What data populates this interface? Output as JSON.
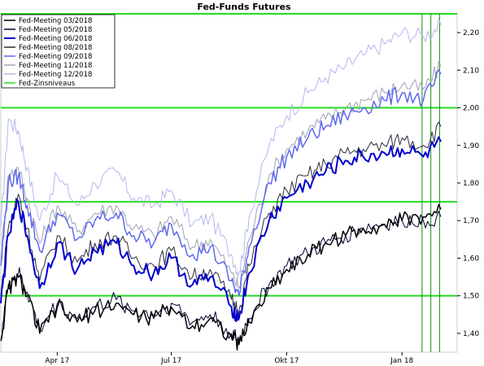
{
  "chart_data": {
    "type": "line",
    "title": "Fed-Funds Futures",
    "xlabel": "",
    "ylabel": "",
    "x_tick_labels": [
      "Apr 17",
      "Jul 17",
      "Okt 17",
      "Jan 18"
    ],
    "y_tick_labels": [
      "1,40",
      "1,50",
      "1,60",
      "1,70",
      "1,80",
      "1,90",
      "2,00",
      "2,10",
      "2,20"
    ],
    "ylim": [
      1.35,
      2.25
    ],
    "xlim": [
      "2017-03-01",
      "2018-02-28"
    ],
    "grid": false,
    "legend_position": "top-left",
    "reference_lines": {
      "name": "Fed-Zinsniveaus",
      "color": "#22dd22",
      "horizontal_levels": [
        1.5,
        1.75,
        2.0,
        2.25
      ],
      "vertical_dates": [
        "2018-01-31",
        "2018-02-07",
        "2018-02-14"
      ]
    },
    "series": [
      {
        "name": "Fed-Meeting 03/2018",
        "color": "#000000",
        "x": [
          "2017-03-01",
          "2017-03-07",
          "2017-03-15",
          "2017-03-22",
          "2017-04-01",
          "2017-04-15",
          "2017-05-01",
          "2017-05-15",
          "2017-06-01",
          "2017-06-15",
          "2017-07-01",
          "2017-07-15",
          "2017-08-01",
          "2017-08-15",
          "2017-09-01",
          "2017-09-07",
          "2017-09-15",
          "2017-10-01",
          "2017-10-15",
          "2017-11-01",
          "2017-11-15",
          "2017-12-01",
          "2017-12-15",
          "2018-01-01",
          "2018-01-15",
          "2018-02-01",
          "2018-02-15"
        ],
        "values": [
          1.38,
          1.52,
          1.55,
          1.5,
          1.4,
          1.47,
          1.43,
          1.46,
          1.48,
          1.45,
          1.44,
          1.47,
          1.42,
          1.44,
          1.39,
          1.37,
          1.43,
          1.52,
          1.57,
          1.61,
          1.64,
          1.66,
          1.68,
          1.69,
          1.7,
          1.71,
          1.73
        ]
      },
      {
        "name": "Fed-Meeting 05/2018",
        "color": "#000033",
        "x": [
          "2017-03-01",
          "2017-03-07",
          "2017-03-15",
          "2017-03-22",
          "2017-04-01",
          "2017-04-15",
          "2017-05-01",
          "2017-05-15",
          "2017-06-01",
          "2017-06-15",
          "2017-07-01",
          "2017-07-15",
          "2017-08-01",
          "2017-08-15",
          "2017-09-01",
          "2017-09-07",
          "2017-09-15",
          "2017-10-01",
          "2017-10-15",
          "2017-11-01",
          "2017-11-15",
          "2017-12-01",
          "2017-12-15",
          "2018-01-01",
          "2018-01-15",
          "2018-02-01",
          "2018-02-15"
        ],
        "values": [
          1.39,
          1.53,
          1.56,
          1.51,
          1.41,
          1.48,
          1.44,
          1.47,
          1.49,
          1.46,
          1.45,
          1.48,
          1.43,
          1.45,
          1.4,
          1.38,
          1.44,
          1.53,
          1.58,
          1.61,
          1.64,
          1.66,
          1.68,
          1.69,
          1.7,
          1.7,
          1.71
        ]
      },
      {
        "name": "Fed-Meeting 06/2018",
        "color": "#0000cc",
        "x": [
          "2017-03-01",
          "2017-03-07",
          "2017-03-15",
          "2017-03-22",
          "2017-04-01",
          "2017-04-15",
          "2017-05-01",
          "2017-05-15",
          "2017-06-01",
          "2017-06-15",
          "2017-07-01",
          "2017-07-15",
          "2017-08-01",
          "2017-08-15",
          "2017-09-01",
          "2017-09-07",
          "2017-09-15",
          "2017-10-01",
          "2017-10-15",
          "2017-11-01",
          "2017-11-15",
          "2017-12-01",
          "2017-12-15",
          "2018-01-01",
          "2018-01-15",
          "2018-02-01",
          "2018-02-15"
        ],
        "values": [
          1.48,
          1.66,
          1.75,
          1.66,
          1.52,
          1.64,
          1.57,
          1.62,
          1.64,
          1.58,
          1.56,
          1.6,
          1.53,
          1.55,
          1.47,
          1.44,
          1.56,
          1.7,
          1.76,
          1.8,
          1.83,
          1.86,
          1.87,
          1.88,
          1.89,
          1.87,
          1.91
        ]
      },
      {
        "name": "Fed-Meeting 08/2018",
        "color": "#2a2a3a",
        "x": [
          "2017-03-01",
          "2017-03-07",
          "2017-03-15",
          "2017-03-22",
          "2017-04-01",
          "2017-04-15",
          "2017-05-01",
          "2017-05-15",
          "2017-06-01",
          "2017-06-15",
          "2017-07-01",
          "2017-07-15",
          "2017-08-01",
          "2017-08-15",
          "2017-09-01",
          "2017-09-07",
          "2017-09-15",
          "2017-10-01",
          "2017-10-15",
          "2017-11-01",
          "2017-11-15",
          "2017-12-01",
          "2017-12-15",
          "2018-01-01",
          "2018-01-15",
          "2018-02-01",
          "2018-02-15"
        ],
        "values": [
          1.5,
          1.68,
          1.77,
          1.68,
          1.54,
          1.66,
          1.59,
          1.64,
          1.66,
          1.6,
          1.58,
          1.62,
          1.55,
          1.57,
          1.49,
          1.46,
          1.58,
          1.72,
          1.78,
          1.82,
          1.85,
          1.88,
          1.89,
          1.9,
          1.92,
          1.9,
          1.95
        ]
      },
      {
        "name": "Fed-Meeting 09/2018",
        "color": "#5f6aee",
        "x": [
          "2017-03-01",
          "2017-03-07",
          "2017-03-15",
          "2017-03-22",
          "2017-04-01",
          "2017-04-15",
          "2017-05-01",
          "2017-05-15",
          "2017-06-01",
          "2017-06-15",
          "2017-07-01",
          "2017-07-15",
          "2017-08-01",
          "2017-08-15",
          "2017-09-01",
          "2017-09-07",
          "2017-09-15",
          "2017-10-01",
          "2017-10-15",
          "2017-11-01",
          "2017-11-15",
          "2017-12-01",
          "2017-12-15",
          "2018-01-01",
          "2018-01-15",
          "2018-02-01",
          "2018-02-15"
        ],
        "values": [
          1.58,
          1.8,
          1.82,
          1.74,
          1.62,
          1.72,
          1.65,
          1.7,
          1.72,
          1.66,
          1.64,
          1.69,
          1.61,
          1.63,
          1.54,
          1.5,
          1.63,
          1.8,
          1.87,
          1.92,
          1.95,
          1.98,
          2.0,
          2.02,
          2.04,
          2.02,
          2.09
        ]
      },
      {
        "name": "Fed-Meeting 11/2018",
        "color": "#a0a0b4",
        "x": [
          "2017-03-01",
          "2017-03-07",
          "2017-03-15",
          "2017-03-22",
          "2017-04-01",
          "2017-04-15",
          "2017-05-01",
          "2017-05-15",
          "2017-06-01",
          "2017-06-15",
          "2017-07-01",
          "2017-07-15",
          "2017-08-01",
          "2017-08-15",
          "2017-09-01",
          "2017-09-07",
          "2017-09-15",
          "2017-10-01",
          "2017-10-15",
          "2017-11-01",
          "2017-11-15",
          "2017-12-01",
          "2017-12-15",
          "2018-01-01",
          "2018-01-15",
          "2018-02-01",
          "2018-02-15"
        ],
        "values": [
          1.6,
          1.82,
          1.84,
          1.76,
          1.64,
          1.74,
          1.67,
          1.72,
          1.74,
          1.68,
          1.66,
          1.71,
          1.63,
          1.65,
          1.56,
          1.52,
          1.65,
          1.82,
          1.89,
          1.94,
          1.97,
          2.0,
          2.02,
          2.04,
          2.06,
          2.05,
          2.11
        ]
      },
      {
        "name": "Fed-Meeting 12/2018",
        "color": "#b4b8ee",
        "x": [
          "2017-03-01",
          "2017-03-07",
          "2017-03-15",
          "2017-03-22",
          "2017-04-01",
          "2017-04-15",
          "2017-05-01",
          "2017-05-15",
          "2017-06-01",
          "2017-06-15",
          "2017-07-01",
          "2017-07-15",
          "2017-08-01",
          "2017-08-15",
          "2017-09-01",
          "2017-09-07",
          "2017-09-15",
          "2017-10-01",
          "2017-10-15",
          "2017-11-01",
          "2017-11-15",
          "2017-12-01",
          "2017-12-15",
          "2018-01-01",
          "2018-01-15",
          "2018-02-01",
          "2018-02-15"
        ],
        "values": [
          1.68,
          1.97,
          1.94,
          1.84,
          1.7,
          1.82,
          1.74,
          1.8,
          1.83,
          1.76,
          1.74,
          1.78,
          1.69,
          1.71,
          1.61,
          1.56,
          1.71,
          1.9,
          1.98,
          2.04,
          2.08,
          2.11,
          2.14,
          2.17,
          2.2,
          2.19,
          2.22
        ]
      }
    ]
  }
}
